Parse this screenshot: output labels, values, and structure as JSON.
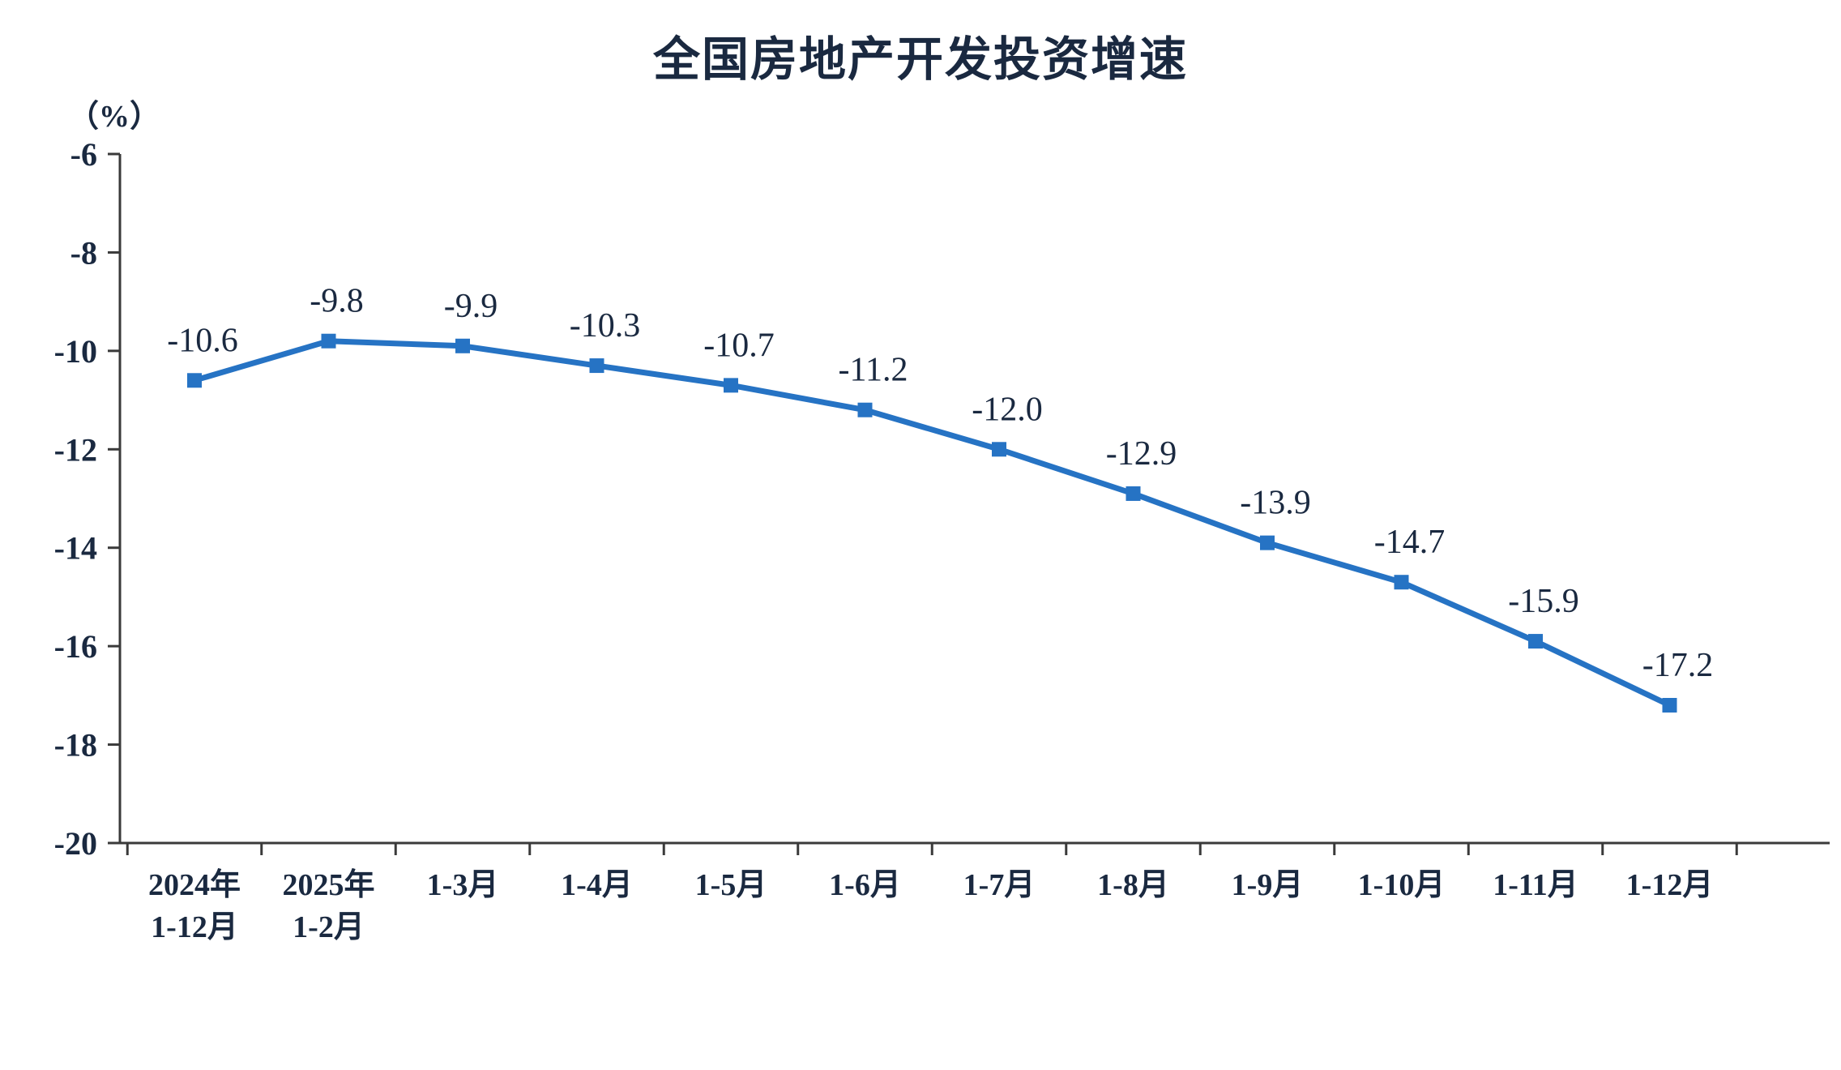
{
  "title": "全国房地产开发投资增速",
  "chart_data": {
    "type": "line",
    "title": "全国房地产开发投资增速",
    "ylabel": "（%）",
    "xlabel": "",
    "categories": [
      [
        "2024年",
        "1-12月"
      ],
      [
        "2025年",
        "1-2月"
      ],
      [
        "1-3月"
      ],
      [
        "1-4月"
      ],
      [
        "1-5月"
      ],
      [
        "1-6月"
      ],
      [
        "1-7月"
      ],
      [
        "1-8月"
      ],
      [
        "1-9月"
      ],
      [
        "1-10月"
      ],
      [
        "1-11月"
      ],
      [
        "1-12月"
      ]
    ],
    "values": [
      -10.6,
      -9.8,
      -9.9,
      -10.3,
      -10.7,
      -11.2,
      -12.0,
      -12.9,
      -13.9,
      -14.7,
      -15.9,
      -17.2
    ],
    "data_labels": [
      "-10.6",
      "-9.8",
      "-9.9",
      "-10.3",
      "-10.7",
      "-11.2",
      "-12.0",
      "-12.9",
      "-13.9",
      "-14.7",
      "-15.9",
      "-17.2"
    ],
    "ylim": [
      -20,
      -6
    ],
    "yticks": [
      -6,
      -8,
      -10,
      -12,
      -14,
      -16,
      -18,
      -20
    ],
    "ytick_step": 2,
    "grid": false,
    "legend": false,
    "marker": "square",
    "line_color": "#2673C4",
    "text_color": "#1a2940",
    "axis_color": "#3a3a3a"
  }
}
